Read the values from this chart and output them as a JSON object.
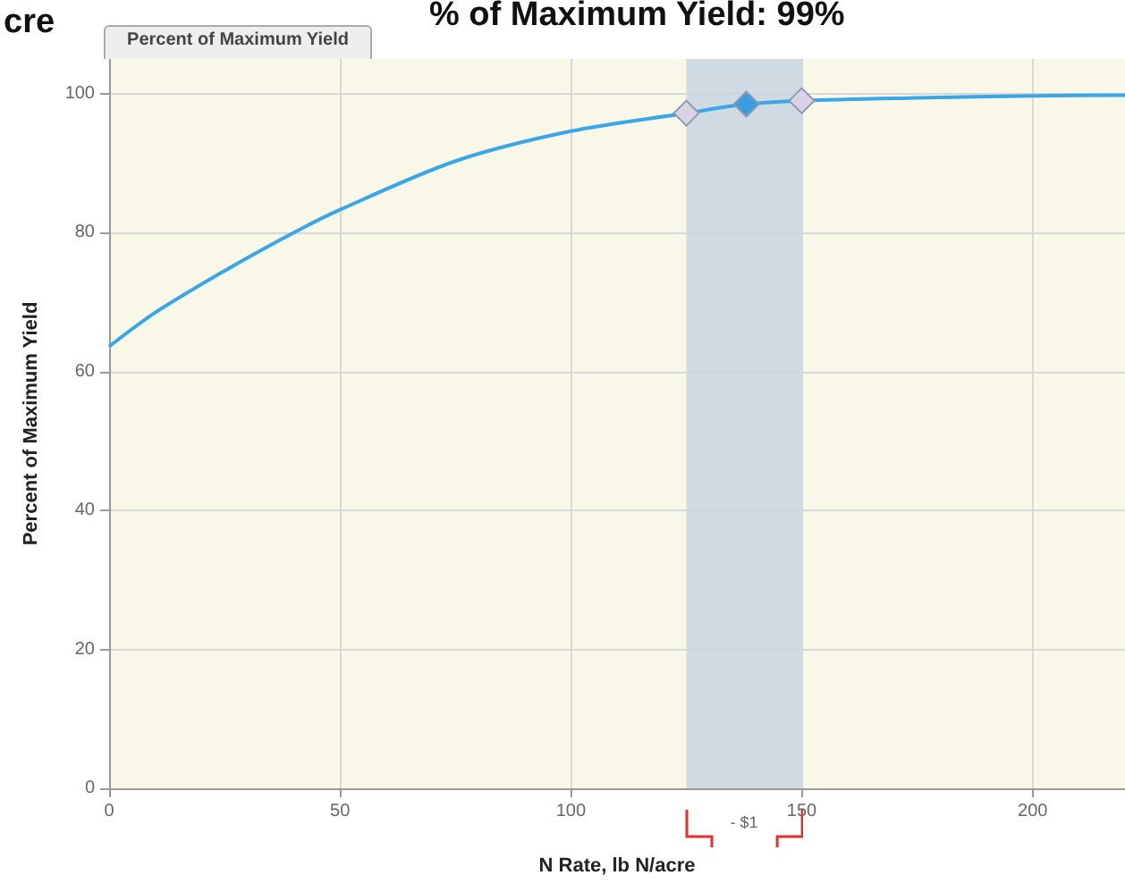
{
  "chart_data": {
    "type": "line",
    "title": "Percent of Maximum Yield",
    "xlabel": "N Rate, lb N/acre",
    "ylabel": "Percent of Maximum Yield",
    "annotations": [
      "cre",
      "% of Maximum Yield: 99%",
      "- $1"
    ],
    "series": [
      {
        "type": "line",
        "color": "#3aa6e8",
        "marker": "none",
        "x": [
          0,
          10,
          25,
          40,
          50,
          75,
          100,
          125,
          138,
          150,
          175,
          200,
          220
        ],
        "values": [
          63.6,
          68.5,
          74.5,
          80,
          83.3,
          90.3,
          94.6,
          97.2,
          98.5,
          99.0,
          99.4,
          99.7,
          99.8
        ]
      },
      {
        "type": "scatter",
        "marker": "diamond",
        "x": [
          125,
          138,
          150
        ],
        "values": [
          97.2,
          98.5,
          99.0
        ],
        "colors": [
          "#d9d2e6",
          "#3a9de0",
          "#d9d2e6"
        ]
      }
    ],
    "bands": [
      {
        "axis": "x",
        "from": 125,
        "to": 150,
        "color": "#c9d5e0"
      }
    ],
    "xlim": [
      0,
      220
    ],
    "xticks": [
      0,
      50,
      100,
      150,
      200
    ],
    "ylim": [
      0,
      105
    ],
    "yticks": [
      0,
      20,
      40,
      60,
      80,
      100
    ],
    "grid": true
  }
}
